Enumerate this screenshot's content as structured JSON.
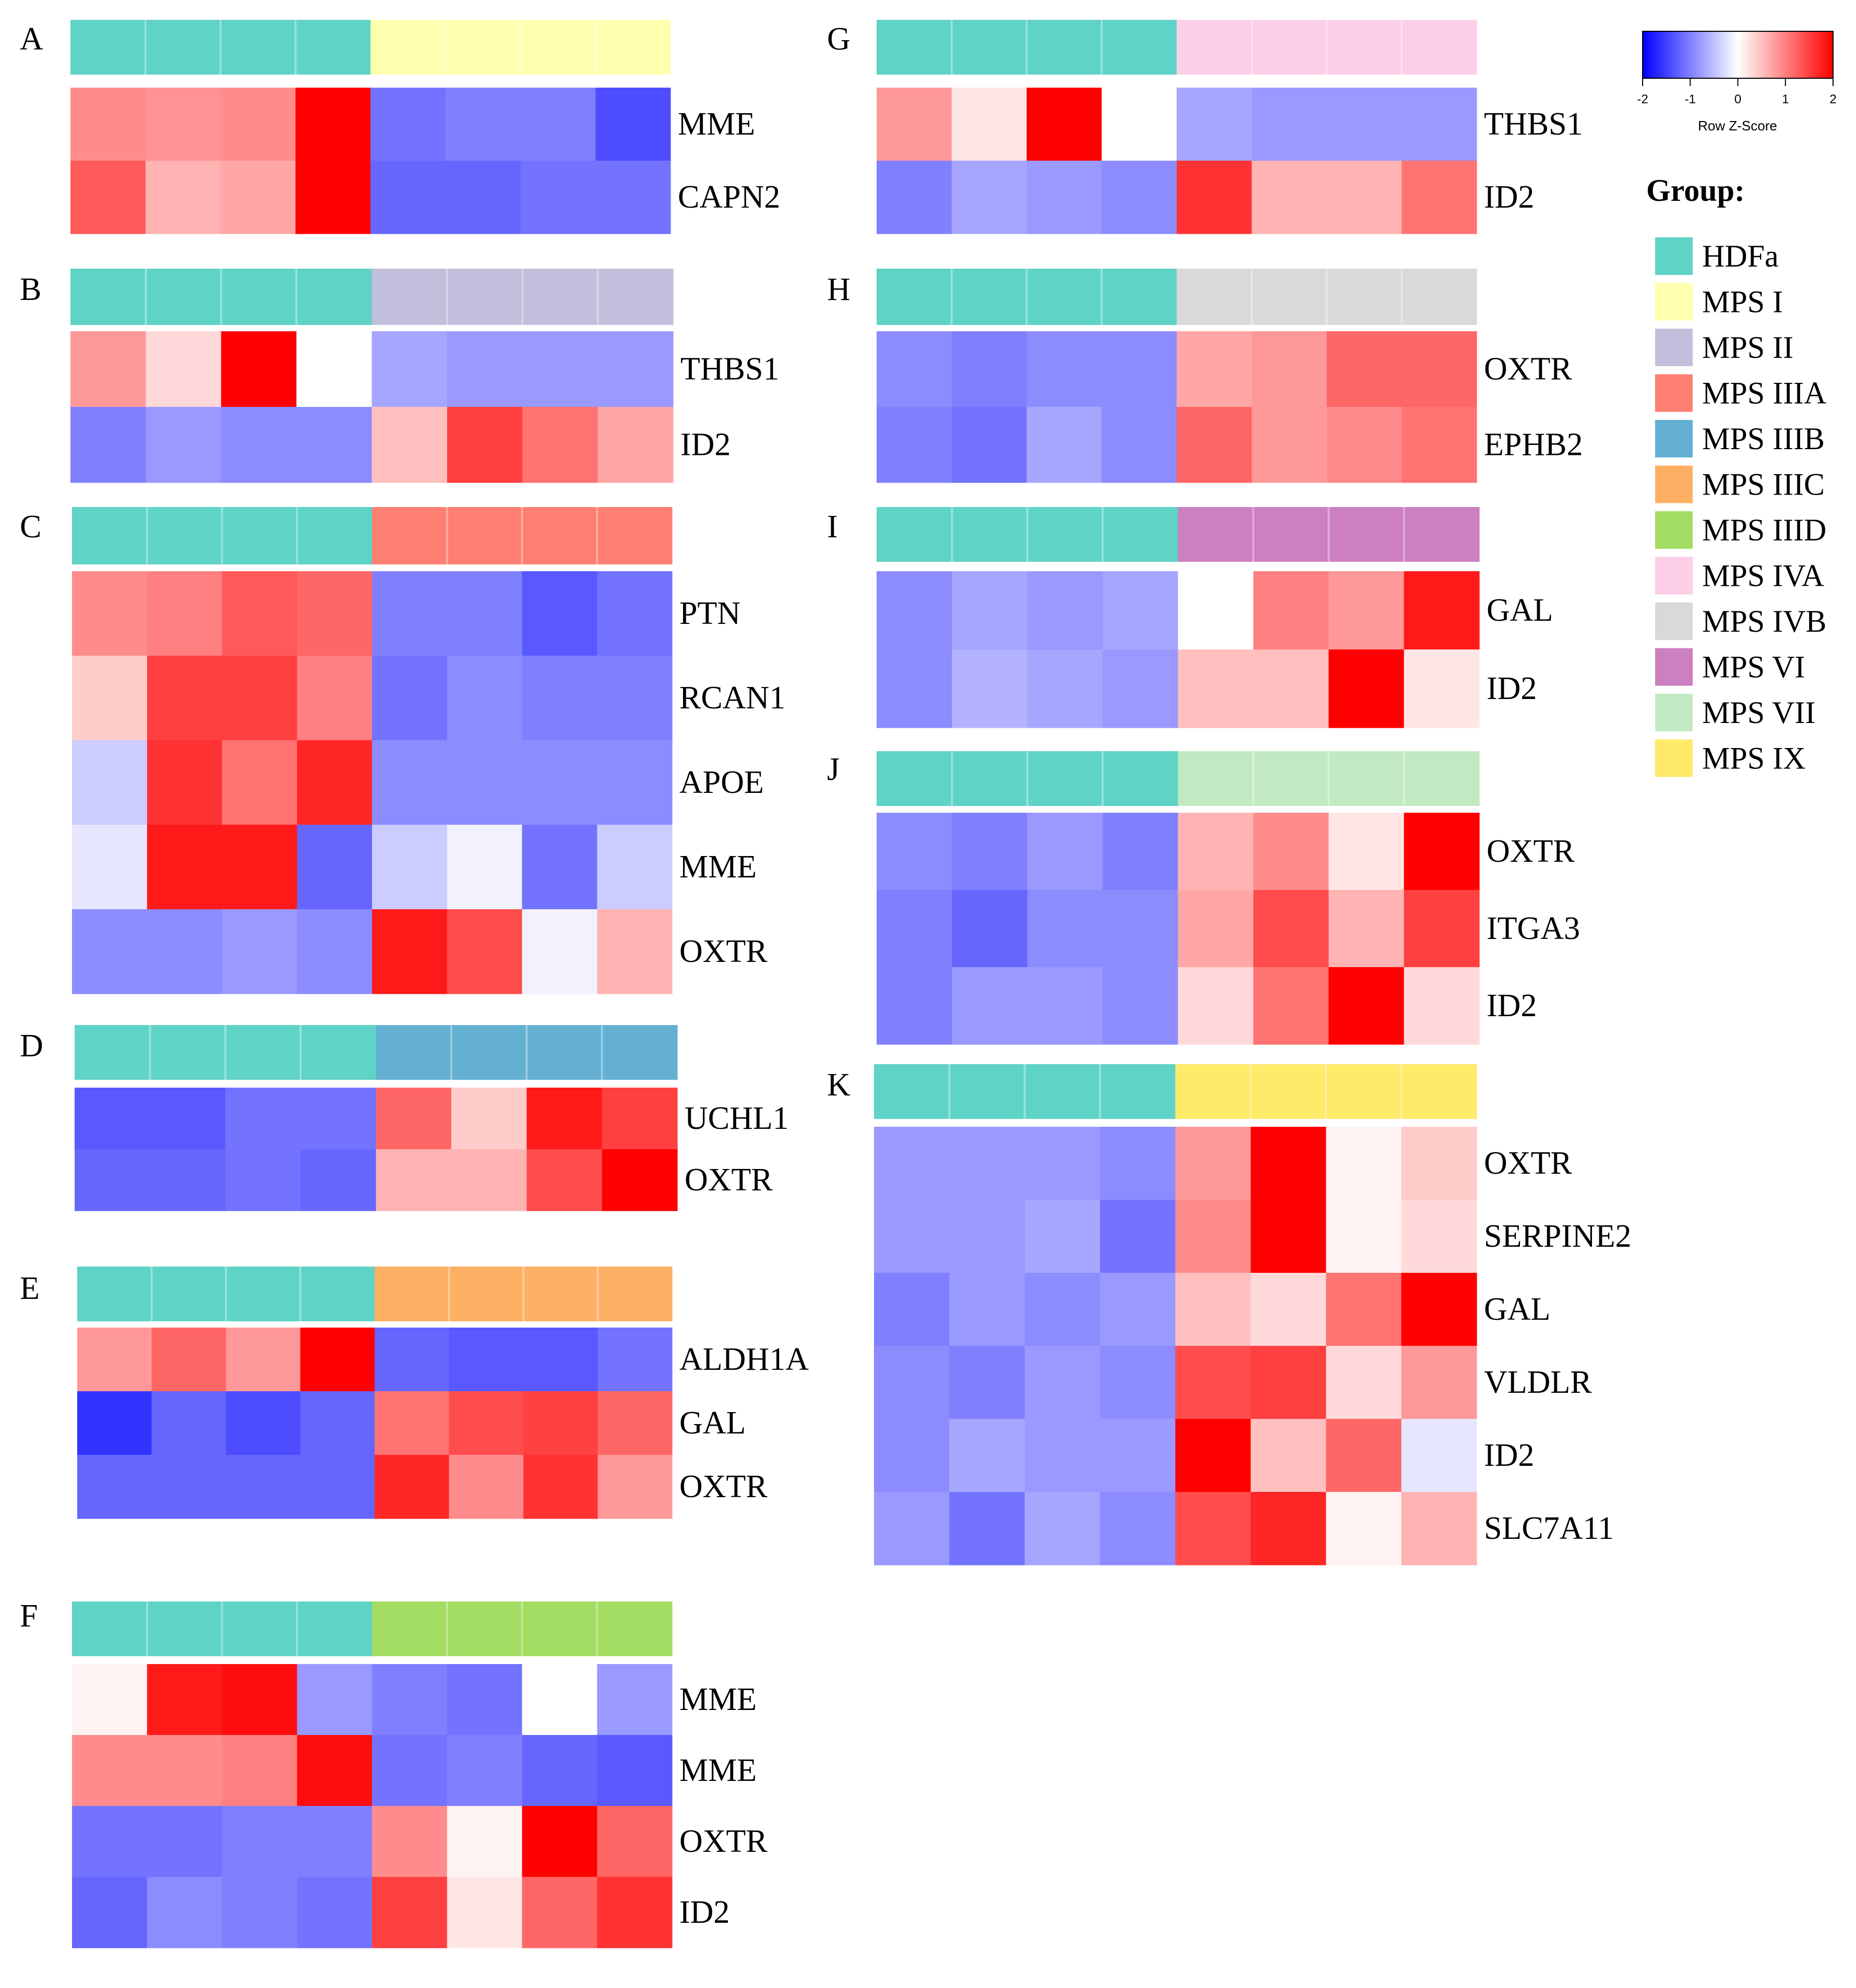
{
  "colors": {
    "low": "#0000ff",
    "mid": "#ffffff",
    "high": "#ff0000",
    "groups": {
      "HDFa": "#5fd3c6",
      "MPS I": "#ffffb0",
      "MPS II": "#c1bfdc",
      "MPS IIIA": "#fd7f72",
      "MPS IIIB": "#64b0d3",
      "MPS IIIC": "#fdb064",
      "MPS IIID": "#a3dc62",
      "MPS IVA": "#fdcfe6",
      "MPS IVB": "#d9d9d9",
      "MPS VI": "#cc7fc1",
      "MPS VII": "#c2eac2",
      "MPS IX": "#ffea6a"
    }
  },
  "legend": {
    "title": "Group:",
    "items": [
      "HDFa",
      "MPS I",
      "MPS II",
      "MPS IIIA",
      "MPS IIIB",
      "MPS IIIC",
      "MPS IIID",
      "MPS IVA",
      "MPS IVB",
      "MPS VI",
      "MPS VII",
      "MPS IX"
    ]
  },
  "colorbar": {
    "title": "Row Z-Score",
    "range": [
      -2,
      2
    ],
    "ticks": [
      "-2",
      "-1",
      "0",
      "1",
      "2"
    ]
  },
  "chart_data": [
    {
      "type": "heatmap",
      "panel": "A",
      "groups": [
        "HDFa",
        "MPS I"
      ],
      "genes": [
        "MME",
        "CAPN2"
      ],
      "values": [
        [
          0.9,
          0.85,
          0.9,
          2.0,
          -1.1,
          -1.0,
          -1.0,
          -1.4
        ],
        [
          1.3,
          0.6,
          0.7,
          2.0,
          -1.2,
          -1.2,
          -1.1,
          -1.1
        ]
      ]
    },
    {
      "type": "heatmap",
      "panel": "B",
      "groups": [
        "HDFa",
        "MPS II"
      ],
      "genes": [
        "THBS1",
        "ID2"
      ],
      "values": [
        [
          0.8,
          0.3,
          2.0,
          0.0,
          -0.7,
          -0.8,
          -0.8,
          -0.8
        ],
        [
          -1.0,
          -0.8,
          -0.9,
          -0.9,
          0.5,
          1.5,
          1.1,
          0.7
        ]
      ]
    },
    {
      "type": "heatmap",
      "panel": "C",
      "groups": [
        "HDFa",
        "MPS IIIA"
      ],
      "genes": [
        "PTN",
        "RCAN1",
        "APOE",
        "MME",
        "OXTR"
      ],
      "values": [
        [
          0.9,
          1.0,
          1.3,
          1.2,
          -1.0,
          -1.0,
          -1.3,
          -1.1
        ],
        [
          0.4,
          1.5,
          1.5,
          1.0,
          -1.1,
          -0.9,
          -1.0,
          -1.0
        ],
        [
          -0.4,
          1.6,
          1.1,
          1.7,
          -0.9,
          -0.9,
          -0.9,
          -0.9
        ],
        [
          -0.2,
          1.8,
          1.8,
          -1.2,
          -0.4,
          -0.1,
          -1.1,
          -0.4
        ],
        [
          -0.9,
          -0.9,
          -0.8,
          -0.9,
          1.8,
          1.4,
          -0.1,
          0.6
        ]
      ]
    },
    {
      "type": "heatmap",
      "panel": "D",
      "groups": [
        "HDFa",
        "MPS IIIB"
      ],
      "genes": [
        "UCHL1",
        "OXTR"
      ],
      "values": [
        [
          -1.3,
          -1.3,
          -1.1,
          -1.1,
          1.2,
          0.4,
          1.8,
          1.5
        ],
        [
          -1.2,
          -1.2,
          -1.1,
          -1.2,
          0.6,
          0.6,
          1.4,
          2.0
        ]
      ]
    },
    {
      "type": "heatmap",
      "panel": "E",
      "groups": [
        "HDFa",
        "MPS IIIC"
      ],
      "genes": [
        "ALDH1A",
        "GAL",
        "OXTR"
      ],
      "values": [
        [
          0.8,
          1.2,
          0.8,
          2.0,
          -1.2,
          -1.3,
          -1.3,
          -1.1
        ],
        [
          -1.6,
          -1.2,
          -1.4,
          -1.2,
          1.1,
          1.4,
          1.5,
          1.2
        ],
        [
          -1.2,
          -1.2,
          -1.2,
          -1.2,
          1.7,
          0.9,
          1.6,
          0.8
        ]
      ]
    },
    {
      "type": "heatmap",
      "panel": "F",
      "groups": [
        "HDFa",
        "MPS IIID"
      ],
      "genes": [
        "MME",
        "MME",
        "OXTR",
        "ID2"
      ],
      "values": [
        [
          0.1,
          1.8,
          1.9,
          -0.8,
          -1.0,
          -1.1,
          0.0,
          -0.8
        ],
        [
          0.9,
          0.9,
          1.0,
          1.9,
          -1.1,
          -1.0,
          -1.2,
          -1.3
        ],
        [
          -1.1,
          -1.1,
          -1.0,
          -1.0,
          0.9,
          0.1,
          2.0,
          1.2
        ],
        [
          -1.2,
          -0.9,
          -1.0,
          -1.1,
          1.5,
          0.2,
          1.2,
          1.6
        ]
      ]
    },
    {
      "type": "heatmap",
      "panel": "G",
      "groups": [
        "HDFa",
        "MPS IVA"
      ],
      "genes": [
        "THBS1",
        "ID2"
      ],
      "values": [
        [
          0.8,
          0.2,
          2.0,
          0.0,
          -0.7,
          -0.8,
          -0.8,
          -0.8
        ],
        [
          -1.0,
          -0.7,
          -0.8,
          -0.9,
          1.6,
          0.6,
          0.6,
          1.1
        ]
      ]
    },
    {
      "type": "heatmap",
      "panel": "H",
      "groups": [
        "HDFa",
        "MPS IVB"
      ],
      "genes": [
        "OXTR",
        "EPHB2"
      ],
      "values": [
        [
          -0.9,
          -1.0,
          -0.9,
          -0.9,
          0.7,
          0.8,
          1.2,
          1.2
        ],
        [
          -1.0,
          -1.1,
          -0.7,
          -0.9,
          1.2,
          0.8,
          0.9,
          1.1
        ]
      ]
    },
    {
      "type": "heatmap",
      "panel": "I",
      "groups": [
        "HDFa",
        "MPS VI"
      ],
      "genes": [
        "GAL",
        "ID2"
      ],
      "values": [
        [
          -0.9,
          -0.7,
          -0.8,
          -0.7,
          0.0,
          1.0,
          0.8,
          1.8
        ],
        [
          -0.9,
          -0.6,
          -0.7,
          -0.8,
          0.5,
          0.5,
          2.0,
          0.2
        ]
      ]
    },
    {
      "type": "heatmap",
      "panel": "J",
      "groups": [
        "HDFa",
        "MPS VII"
      ],
      "genes": [
        "OXTR",
        "ITGA3",
        "ID2"
      ],
      "values": [
        [
          -0.9,
          -1.0,
          -0.8,
          -1.0,
          0.6,
          0.9,
          0.2,
          2.0
        ],
        [
          -1.0,
          -1.2,
          -0.9,
          -0.9,
          0.7,
          1.4,
          0.6,
          1.5
        ],
        [
          -1.0,
          -0.8,
          -0.8,
          -0.9,
          0.3,
          1.1,
          2.0,
          0.3
        ]
      ]
    },
    {
      "type": "heatmap",
      "panel": "K",
      "groups": [
        "HDFa",
        "MPS IX"
      ],
      "genes": [
        "OXTR",
        "SERPINE2",
        "GAL",
        "VLDLR",
        "ID2",
        "SLC7A11"
      ],
      "values": [
        [
          -0.8,
          -0.8,
          -0.8,
          -0.9,
          0.8,
          2.0,
          0.1,
          0.4
        ],
        [
          -0.8,
          -0.8,
          -0.7,
          -1.1,
          0.9,
          2.0,
          0.1,
          0.3
        ],
        [
          -1.0,
          -0.8,
          -0.9,
          -0.8,
          0.5,
          0.3,
          1.1,
          2.0
        ],
        [
          -0.9,
          -1.0,
          -0.8,
          -0.9,
          1.4,
          1.5,
          0.3,
          0.8
        ],
        [
          -0.9,
          -0.7,
          -0.8,
          -0.8,
          2.0,
          0.5,
          1.2,
          -0.2
        ],
        [
          -0.8,
          -1.1,
          -0.7,
          -0.9,
          1.4,
          1.7,
          0.1,
          0.6
        ]
      ]
    }
  ]
}
